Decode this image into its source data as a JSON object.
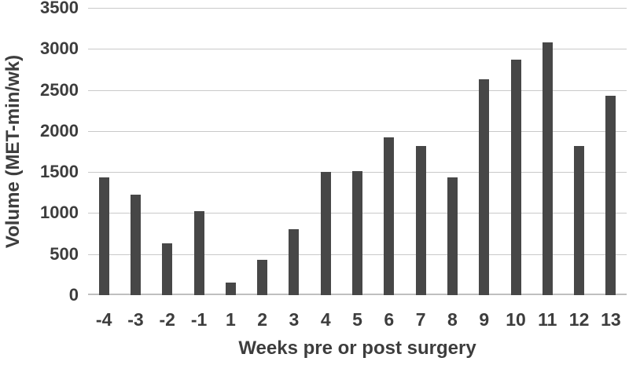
{
  "chart_data": {
    "type": "bar",
    "title": "",
    "xlabel": "Weeks pre or post surgery",
    "ylabel": "Volume (MET-min/wk)",
    "categories": [
      "-4",
      "-3",
      "-2",
      "-1",
      "1",
      "2",
      "3",
      "4",
      "5",
      "6",
      "7",
      "8",
      "9",
      "10",
      "11",
      "12",
      "13"
    ],
    "values": [
      1430,
      1220,
      635,
      1025,
      150,
      430,
      800,
      1500,
      1515,
      1920,
      1820,
      1435,
      2630,
      2865,
      3080,
      1820,
      2430
    ],
    "ylim": [
      0,
      3500
    ],
    "yticks": [
      0,
      500,
      1000,
      1500,
      2000,
      2500,
      3000,
      3500
    ],
    "grid": true,
    "legend": null,
    "colors": {
      "bar": "#474747",
      "gridline": "#c9c9c9",
      "baseline": "#bfbfbf",
      "text": "#3d3d3d"
    }
  }
}
